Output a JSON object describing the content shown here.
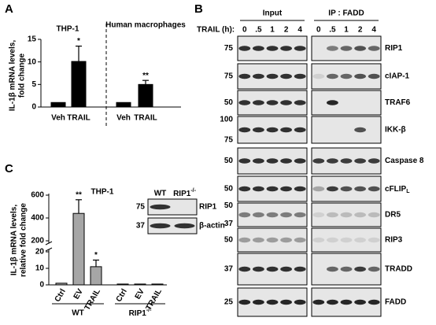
{
  "chart_data": [
    {
      "type": "bar",
      "panel": "A",
      "groups": [
        "THP-1",
        "Human macrophages"
      ],
      "categories": [
        "Veh",
        "TRAIL",
        "Veh",
        "TRAIL"
      ],
      "values": [
        1,
        10.1,
        1,
        5
      ],
      "errors": [
        null,
        3.4,
        null,
        0.9
      ],
      "significance": [
        null,
        "*",
        null,
        "**"
      ],
      "ylabel": [
        "IL-1β mRNA levels,",
        "fold change"
      ],
      "ylim": [
        0,
        15
      ],
      "yticks": [
        0,
        5,
        10,
        15
      ],
      "color": "#000000"
    },
    {
      "type": "broken-bar",
      "panel": "C",
      "title": "THP-1",
      "groups": [
        "WT",
        {
          "text": "RIP1",
          "sup": "-/-"
        }
      ],
      "categories": [
        "Ctrl",
        "EV",
        "TRAIL",
        "Ctrl",
        "EV",
        "TRAIL"
      ],
      "values": [
        1,
        440,
        11,
        0.5,
        0.5,
        0.5
      ],
      "errors": [
        null,
        120,
        4,
        null,
        null,
        null
      ],
      "significance": [
        null,
        "**",
        "*",
        null,
        null,
        null
      ],
      "ylabel": [
        "IL-1β mRNA levels,",
        "relative fold change"
      ],
      "ylim": [
        0,
        600
      ],
      "ybreak": [
        20,
        200
      ],
      "yticks": [
        0,
        10,
        20,
        200,
        400,
        600
      ],
      "color": "#a6a6a6"
    }
  ],
  "blot": {
    "panel": "B",
    "time_label": "TRAIL (h):",
    "sections": [
      "Input",
      "IP : FADD"
    ],
    "lanes": [
      "0",
      ".5",
      "1",
      "2",
      "4"
    ],
    "rows": [
      {
        "protein": "RIP1",
        "markers": [
          75
        ]
      },
      {
        "protein": "cIAP-1",
        "markers": [
          75
        ]
      },
      {
        "protein": "TRAF6",
        "markers": [
          50
        ]
      },
      {
        "protein": "IKK-β",
        "markers": [
          100,
          75
        ]
      },
      {
        "protein": "Caspase 8",
        "markers": [
          50
        ]
      },
      {
        "protein": {
          "text": "cFLIP",
          "sub": "L"
        },
        "markers": [
          50
        ]
      },
      {
        "protein": "DR5",
        "markers": [
          50,
          37
        ]
      },
      {
        "protein": "RIP3",
        "markers": [
          50
        ]
      },
      {
        "protein": "TRADD",
        "markers": [
          37
        ]
      },
      {
        "protein": "FADD",
        "markers": [
          25
        ]
      }
    ]
  },
  "inset_blot": {
    "lanes": [
      "WT",
      {
        "text": "RIP1",
        "sup": "-/-"
      }
    ],
    "rows": [
      {
        "protein": "RIP1",
        "markers": [
          75
        ]
      },
      {
        "protein": "β-actin",
        "markers": [
          37
        ]
      }
    ]
  }
}
